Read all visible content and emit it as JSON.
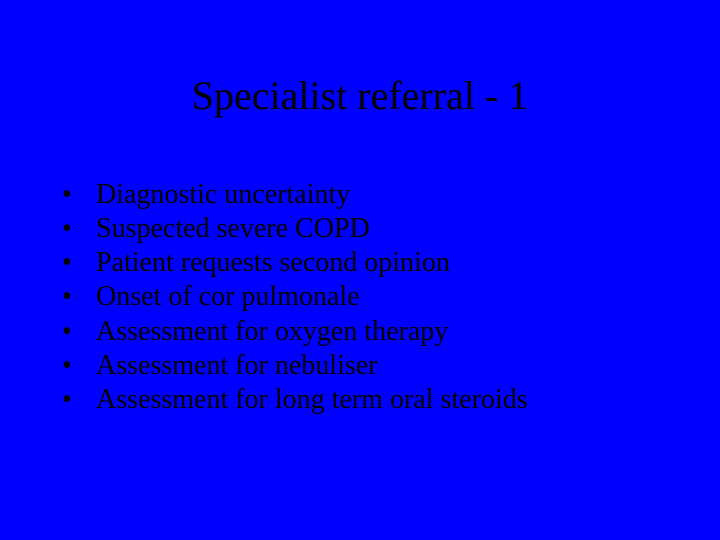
{
  "slide": {
    "background_color": "#0000fe",
    "text_color": "#000000",
    "font_family": "Times New Roman",
    "title": "Specialist referral - 1",
    "title_fontsize": 40,
    "body_fontsize": 28,
    "bullet_char": "•",
    "bullets": [
      "Diagnostic uncertainty",
      "Suspected severe COPD",
      "Patient requests second opinion",
      "Onset of cor pulmonale",
      "Assessment for oxygen therapy",
      "Assessment for nebuliser",
      "Assessment for long term oral steroids"
    ]
  }
}
